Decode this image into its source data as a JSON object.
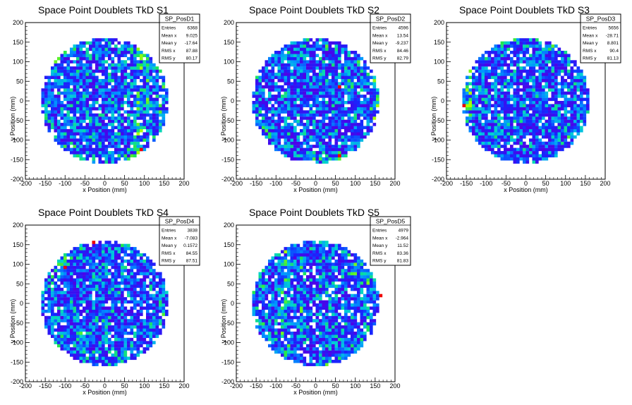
{
  "chart_data": [
    {
      "type": "heatmap",
      "title": "Space Point Doublets TkD S1",
      "xlabel": "x Position (mm)",
      "ylabel": "y Position (mm)",
      "xlim": [
        -200,
        200
      ],
      "ylim": [
        -200,
        200
      ],
      "xticks": [
        "-200",
        "-150",
        "-100",
        "-50",
        "0",
        "50",
        "100",
        "150",
        "200"
      ],
      "yticks": [
        "-200",
        "-150",
        "-100",
        "-50",
        "0",
        "50",
        "100",
        "150",
        "200"
      ],
      "stats": {
        "name": "SP_PosD1",
        "rows": [
          {
            "label": "Entries",
            "value": "6368"
          },
          {
            "label": "Mean x",
            "value": "9.025"
          },
          {
            "label": "Mean y",
            "value": "-17.64"
          },
          {
            "label": "RMS x",
            "value": "87.88"
          },
          {
            "label": "RMS y",
            "value": "80.17"
          }
        ]
      },
      "radius": 160,
      "features": [
        {
          "x": 85,
          "y": 0,
          "w": 20,
          "h": 280,
          "boost": 0.35
        },
        {
          "x": 110,
          "y": 20,
          "w": 12,
          "h": 160,
          "boost": 0.25
        }
      ],
      "hot": [
        {
          "x": 88,
          "y": -125
        }
      ],
      "seed": 11
    },
    {
      "type": "heatmap",
      "title": "Space Point Doublets TkD S2",
      "xlabel": "x Position (mm)",
      "ylabel": "y Position (mm)",
      "xlim": [
        -200,
        200
      ],
      "ylim": [
        -200,
        200
      ],
      "xticks": [
        "-200",
        "-150",
        "-100",
        "-50",
        "0",
        "50",
        "100",
        "150",
        "200"
      ],
      "yticks": [
        "-200",
        "-150",
        "-100",
        "-50",
        "0",
        "50",
        "100",
        "150",
        "200"
      ],
      "stats": {
        "name": "SP_PosD2",
        "rows": [
          {
            "label": "Entries",
            "value": "4596"
          },
          {
            "label": "Mean x",
            "value": "13.54"
          },
          {
            "label": "Mean y",
            "value": "-9.237"
          },
          {
            "label": "RMS x",
            "value": "84.46"
          },
          {
            "label": "RMS y",
            "value": "82.79"
          }
        ]
      },
      "radius": 160,
      "features": [
        {
          "x": 150,
          "y": 10,
          "w": 20,
          "h": 120,
          "boost": 0.3
        },
        {
          "x": 60,
          "y": 40,
          "w": 80,
          "h": 30,
          "boost": 0.15
        }
      ],
      "hot": [
        {
          "x": 60,
          "y": 38
        },
        {
          "x": 60,
          "y": -140
        }
      ],
      "seed": 23
    },
    {
      "type": "heatmap",
      "title": "Space Point Doublets TkD S3",
      "xlabel": "x Position (mm)",
      "ylabel": "y Position (mm)",
      "xlim": [
        -200,
        200
      ],
      "ylim": [
        -200,
        200
      ],
      "xticks": [
        "-200",
        "-150",
        "-100",
        "-50",
        "0",
        "50",
        "100",
        "150",
        "200"
      ],
      "yticks": [
        "-200",
        "-150",
        "-100",
        "-50",
        "0",
        "50",
        "100",
        "150",
        "200"
      ],
      "stats": {
        "name": "SP_PosD3",
        "rows": [
          {
            "label": "Entries",
            "value": "5656"
          },
          {
            "label": "Mean x",
            "value": "-28.71"
          },
          {
            "label": "Mean y",
            "value": "8.801"
          },
          {
            "label": "RMS x",
            "value": "90.4"
          },
          {
            "label": "RMS y",
            "value": "81.13"
          }
        ]
      },
      "radius": 160,
      "features": [
        {
          "x": -150,
          "y": 10,
          "w": 25,
          "h": 150,
          "boost": 0.35
        }
      ],
      "hot": [
        {
          "x": -155,
          "y": -10
        }
      ],
      "seed": 37
    },
    {
      "type": "heatmap",
      "title": "Space Point Doublets TkD S4",
      "xlabel": "x Position (mm)",
      "ylabel": "y Position (mm)",
      "xlim": [
        -200,
        200
      ],
      "ylim": [
        -200,
        200
      ],
      "xticks": [
        "-200",
        "-150",
        "-100",
        "-50",
        "0",
        "50",
        "100",
        "150",
        "200"
      ],
      "yticks": [
        "-200",
        "-150",
        "-100",
        "-50",
        "0",
        "50",
        "100",
        "150",
        "200"
      ],
      "stats": {
        "name": "SP_PosD4",
        "rows": [
          {
            "label": "Entries",
            "value": "3838"
          },
          {
            "label": "Mean x",
            "value": "-7.083"
          },
          {
            "label": "Mean y",
            "value": "0.1572"
          },
          {
            "label": "RMS x",
            "value": "84.55"
          },
          {
            "label": "RMS y",
            "value": "87.51"
          }
        ]
      },
      "radius": 160,
      "features": [
        {
          "x": -90,
          "y": 110,
          "w": 60,
          "h": 60,
          "boost": 0.25
        },
        {
          "x": -80,
          "y": -90,
          "w": 80,
          "h": 40,
          "boost": 0.2
        }
      ],
      "hot": [
        {
          "x": -30,
          "y": 155
        },
        {
          "x": -100,
          "y": 90
        }
      ],
      "seed": 53
    },
    {
      "type": "heatmap",
      "title": "Space Point Doublets TkD S5",
      "xlabel": "x Position (mm)",
      "ylabel": "y Position (mm)",
      "xlim": [
        -200,
        200
      ],
      "ylim": [
        -200,
        200
      ],
      "xticks": [
        "-200",
        "-150",
        "-100",
        "-50",
        "0",
        "50",
        "100",
        "150",
        "200"
      ],
      "yticks": [
        "-200",
        "-150",
        "-100",
        "-50",
        "0",
        "50",
        "100",
        "150",
        "200"
      ],
      "stats": {
        "name": "SP_PosD5",
        "rows": [
          {
            "label": "Entries",
            "value": "4979"
          },
          {
            "label": "Mean x",
            "value": "-2.964"
          },
          {
            "label": "Mean y",
            "value": "11.52"
          },
          {
            "label": "RMS x",
            "value": "83.36"
          },
          {
            "label": "RMS y",
            "value": "81.83"
          }
        ]
      },
      "radius": 160,
      "features": [
        {
          "x": -75,
          "y": 20,
          "w": 20,
          "h": 260,
          "boost": 0.3
        },
        {
          "x": -30,
          "y": 20,
          "w": 15,
          "h": 240,
          "boost": 0.25
        },
        {
          "x": 110,
          "y": 80,
          "w": 50,
          "h": 60,
          "boost": 0.2
        }
      ],
      "hot": [
        {
          "x": 160,
          "y": 20
        }
      ],
      "seed": 71
    }
  ]
}
